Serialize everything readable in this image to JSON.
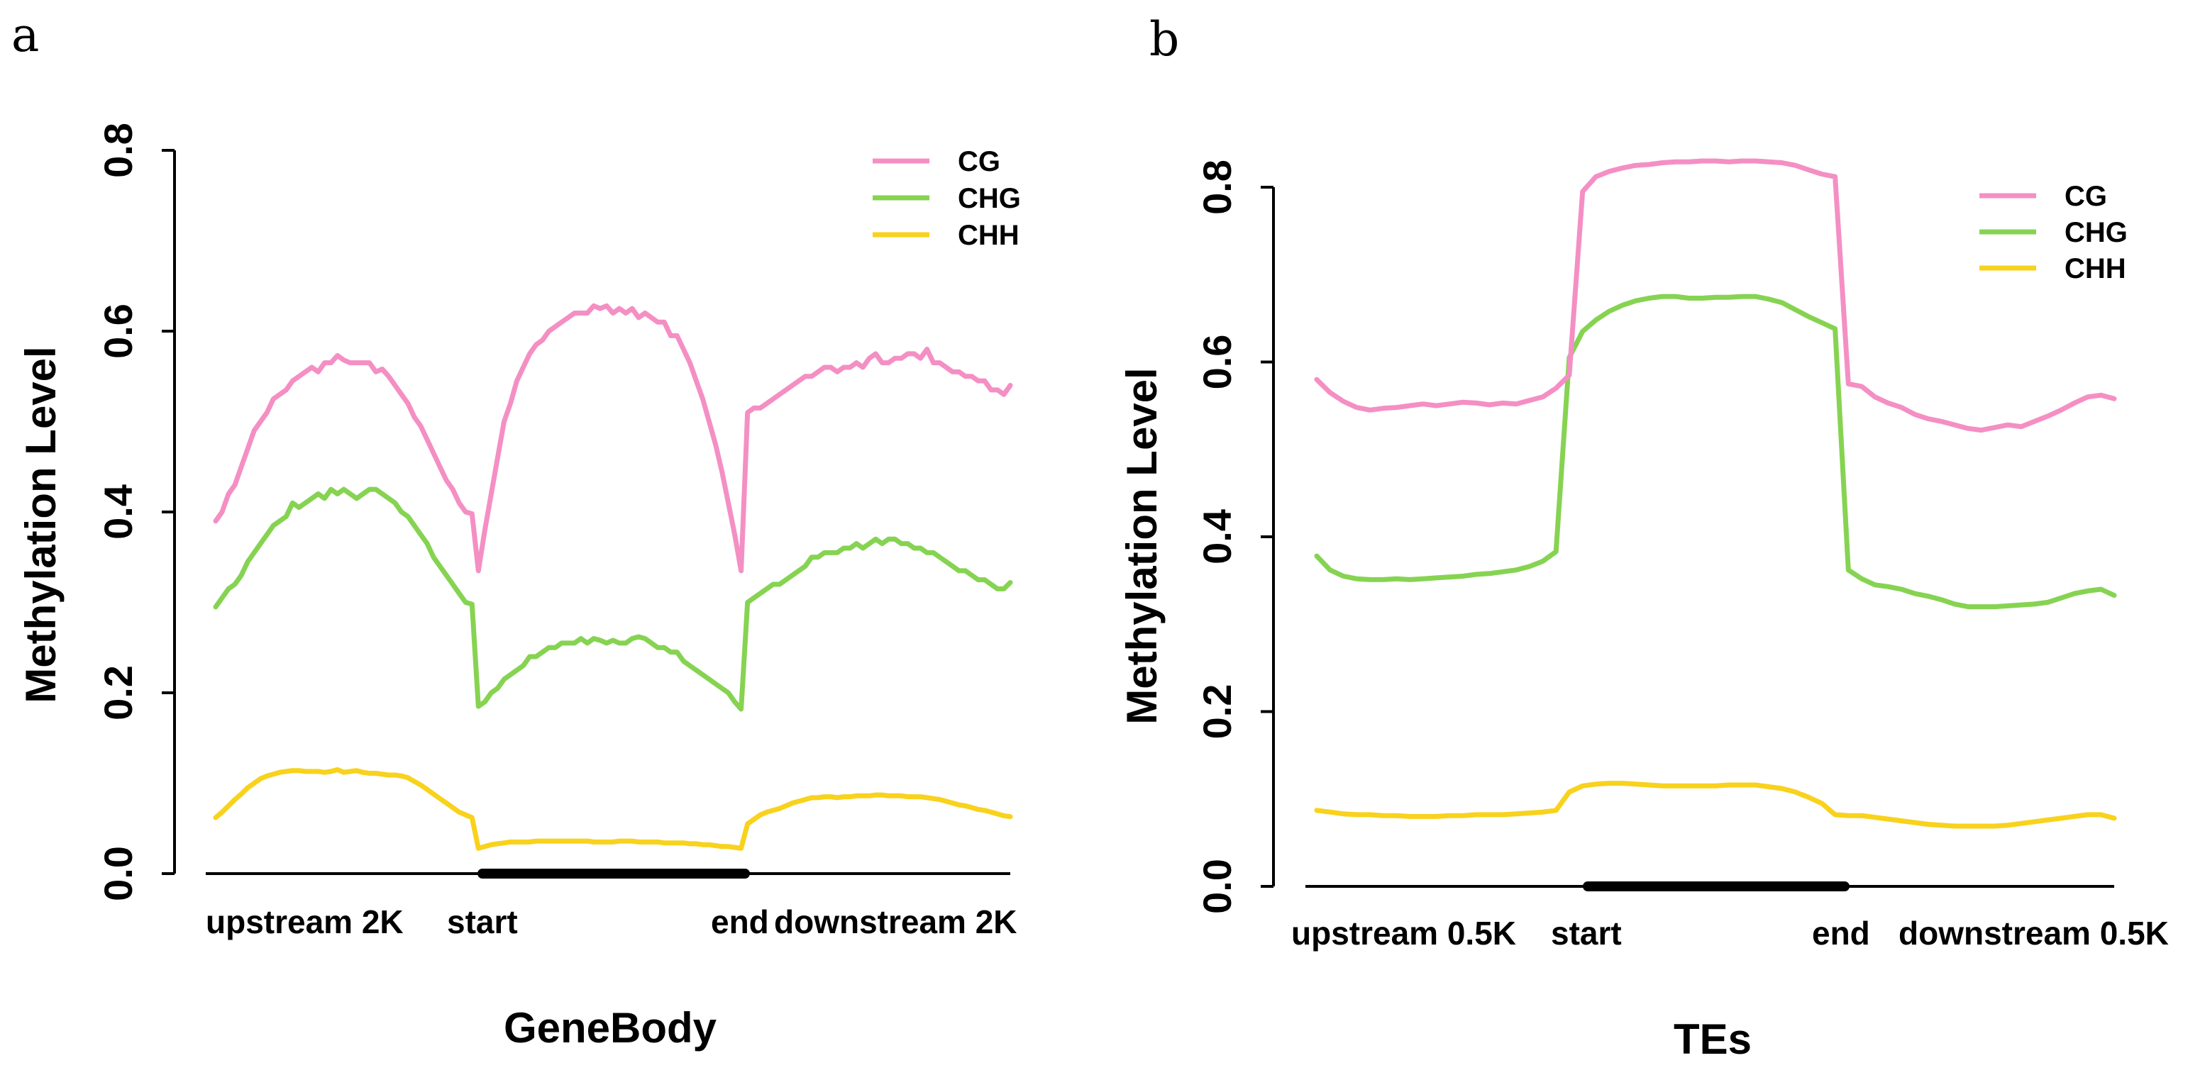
{
  "chart_data": [
    {
      "panel": "a",
      "type": "line",
      "title": "",
      "xlabel": "GeneBody",
      "ylabel": "Methylation Level",
      "ylim": [
        0,
        0.8
      ],
      "yticks": [
        "0.0",
        "0.2",
        "0.4",
        "0.6",
        "0.8"
      ],
      "region_labels": [
        "upstream 2K",
        "start",
        "end",
        "downstream 2K"
      ],
      "legend": [
        "CG",
        "CHG",
        "CHH"
      ],
      "series": [
        {
          "name": "CG",
          "color": "#f48fc4",
          "values": [
            0.39,
            0.4,
            0.42,
            0.43,
            0.45,
            0.47,
            0.49,
            0.5,
            0.51,
            0.525,
            0.53,
            0.535,
            0.545,
            0.55,
            0.555,
            0.56,
            0.555,
            0.565,
            0.565,
            0.573,
            0.568,
            0.565,
            0.565,
            0.565,
            0.565,
            0.555,
            0.558,
            0.55,
            0.54,
            0.53,
            0.52,
            0.505,
            0.495,
            0.48,
            0.465,
            0.45,
            0.435,
            0.425,
            0.41,
            0.4,
            0.398,
            0.335,
            0.38,
            0.42,
            0.46,
            0.5,
            0.52,
            0.545,
            0.56,
            0.575,
            0.585,
            0.59,
            0.6,
            0.605,
            0.61,
            0.615,
            0.62,
            0.62,
            0.62,
            0.628,
            0.625,
            0.628,
            0.62,
            0.625,
            0.62,
            0.625,
            0.615,
            0.62,
            0.615,
            0.61,
            0.61,
            0.595,
            0.595,
            0.58,
            0.565,
            0.545,
            0.525,
            0.5,
            0.475,
            0.445,
            0.41,
            0.375,
            0.335,
            0.51,
            0.515,
            0.515,
            0.52,
            0.525,
            0.53,
            0.535,
            0.54,
            0.545,
            0.55,
            0.55,
            0.555,
            0.56,
            0.56,
            0.555,
            0.56,
            0.56,
            0.565,
            0.56,
            0.57,
            0.575,
            0.565,
            0.565,
            0.57,
            0.57,
            0.575,
            0.575,
            0.57,
            0.58,
            0.565,
            0.565,
            0.56,
            0.555,
            0.555,
            0.55,
            0.55,
            0.545,
            0.545,
            0.535,
            0.535,
            0.53,
            0.54
          ]
        },
        {
          "name": "CHG",
          "color": "#86d352",
          "values": [
            0.295,
            0.305,
            0.315,
            0.32,
            0.33,
            0.345,
            0.355,
            0.365,
            0.375,
            0.385,
            0.39,
            0.395,
            0.41,
            0.405,
            0.41,
            0.415,
            0.42,
            0.415,
            0.425,
            0.42,
            0.425,
            0.42,
            0.415,
            0.42,
            0.425,
            0.425,
            0.42,
            0.415,
            0.41,
            0.4,
            0.395,
            0.385,
            0.375,
            0.365,
            0.35,
            0.34,
            0.33,
            0.32,
            0.31,
            0.3,
            0.298,
            0.185,
            0.19,
            0.2,
            0.205,
            0.215,
            0.22,
            0.225,
            0.23,
            0.24,
            0.24,
            0.245,
            0.25,
            0.25,
            0.255,
            0.255,
            0.255,
            0.26,
            0.255,
            0.26,
            0.258,
            0.255,
            0.258,
            0.255,
            0.255,
            0.26,
            0.262,
            0.26,
            0.255,
            0.25,
            0.25,
            0.245,
            0.245,
            0.235,
            0.23,
            0.225,
            0.22,
            0.215,
            0.21,
            0.205,
            0.2,
            0.19,
            0.182,
            0.3,
            0.305,
            0.31,
            0.315,
            0.32,
            0.32,
            0.325,
            0.33,
            0.335,
            0.34,
            0.35,
            0.35,
            0.355,
            0.355,
            0.355,
            0.36,
            0.36,
            0.365,
            0.36,
            0.365,
            0.37,
            0.365,
            0.37,
            0.37,
            0.365,
            0.365,
            0.36,
            0.36,
            0.355,
            0.355,
            0.35,
            0.345,
            0.34,
            0.335,
            0.335,
            0.33,
            0.325,
            0.325,
            0.32,
            0.315,
            0.315,
            0.322
          ]
        },
        {
          "name": "CHH",
          "color": "#f8d21c",
          "values": [
            0.062,
            0.068,
            0.075,
            0.082,
            0.088,
            0.095,
            0.1,
            0.105,
            0.108,
            0.11,
            0.112,
            0.113,
            0.114,
            0.114,
            0.113,
            0.113,
            0.113,
            0.112,
            0.113,
            0.115,
            0.112,
            0.113,
            0.114,
            0.112,
            0.111,
            0.111,
            0.11,
            0.109,
            0.109,
            0.108,
            0.106,
            0.102,
            0.098,
            0.093,
            0.088,
            0.083,
            0.078,
            0.073,
            0.068,
            0.065,
            0.062,
            0.028,
            0.03,
            0.032,
            0.033,
            0.034,
            0.035,
            0.035,
            0.035,
            0.035,
            0.036,
            0.036,
            0.036,
            0.036,
            0.036,
            0.036,
            0.036,
            0.036,
            0.036,
            0.035,
            0.035,
            0.035,
            0.035,
            0.036,
            0.036,
            0.036,
            0.035,
            0.035,
            0.035,
            0.035,
            0.034,
            0.034,
            0.034,
            0.034,
            0.033,
            0.033,
            0.032,
            0.032,
            0.031,
            0.03,
            0.03,
            0.029,
            0.028,
            0.055,
            0.06,
            0.065,
            0.068,
            0.07,
            0.072,
            0.075,
            0.078,
            0.08,
            0.082,
            0.084,
            0.084,
            0.085,
            0.085,
            0.084,
            0.085,
            0.085,
            0.086,
            0.086,
            0.086,
            0.087,
            0.087,
            0.086,
            0.086,
            0.086,
            0.085,
            0.085,
            0.085,
            0.084,
            0.083,
            0.082,
            0.08,
            0.078,
            0.076,
            0.075,
            0.073,
            0.071,
            0.07,
            0.068,
            0.066,
            0.064,
            0.063
          ]
        }
      ]
    },
    {
      "panel": "b",
      "type": "line",
      "title": "",
      "xlabel": "TEs",
      "ylabel": "Methylation Level",
      "ylim": [
        0,
        0.8
      ],
      "yticks": [
        "0.0",
        "0.2",
        "0.4",
        "0.6",
        "0.8"
      ],
      "region_labels": [
        "upstream 0.5K",
        "start",
        "end",
        "downstream 0.5K"
      ],
      "legend": [
        "CG",
        "CHG",
        "CHH"
      ],
      "series": [
        {
          "name": "CG",
          "color": "#f48fc4",
          "values": [
            0.58,
            0.565,
            0.555,
            0.548,
            0.545,
            0.547,
            0.548,
            0.55,
            0.552,
            0.55,
            0.552,
            0.554,
            0.553,
            0.551,
            0.553,
            0.552,
            0.556,
            0.56,
            0.57,
            0.585,
            0.795,
            0.812,
            0.818,
            0.822,
            0.825,
            0.826,
            0.828,
            0.829,
            0.829,
            0.83,
            0.83,
            0.829,
            0.83,
            0.83,
            0.829,
            0.828,
            0.825,
            0.82,
            0.815,
            0.812,
            0.575,
            0.572,
            0.56,
            0.553,
            0.548,
            0.54,
            0.535,
            0.532,
            0.528,
            0.524,
            0.522,
            0.525,
            0.528,
            0.526,
            0.532,
            0.538,
            0.545,
            0.553,
            0.56,
            0.562,
            0.558
          ]
        },
        {
          "name": "CHG",
          "color": "#86d352",
          "values": [
            0.378,
            0.362,
            0.355,
            0.352,
            0.351,
            0.351,
            0.352,
            0.351,
            0.352,
            0.353,
            0.354,
            0.355,
            0.357,
            0.358,
            0.36,
            0.362,
            0.366,
            0.372,
            0.383,
            0.605,
            0.635,
            0.648,
            0.658,
            0.665,
            0.67,
            0.673,
            0.675,
            0.675,
            0.673,
            0.673,
            0.674,
            0.674,
            0.675,
            0.675,
            0.672,
            0.668,
            0.66,
            0.652,
            0.645,
            0.638,
            0.362,
            0.352,
            0.345,
            0.343,
            0.34,
            0.335,
            0.332,
            0.328,
            0.323,
            0.32,
            0.32,
            0.32,
            0.321,
            0.322,
            0.323,
            0.325,
            0.33,
            0.335,
            0.338,
            0.34,
            0.333
          ]
        },
        {
          "name": "CHH",
          "color": "#f8d21c",
          "values": [
            0.087,
            0.085,
            0.083,
            0.082,
            0.082,
            0.081,
            0.081,
            0.08,
            0.08,
            0.08,
            0.081,
            0.081,
            0.082,
            0.082,
            0.082,
            0.083,
            0.084,
            0.085,
            0.087,
            0.108,
            0.115,
            0.117,
            0.118,
            0.118,
            0.117,
            0.116,
            0.115,
            0.115,
            0.115,
            0.115,
            0.115,
            0.116,
            0.116,
            0.116,
            0.114,
            0.112,
            0.108,
            0.102,
            0.095,
            0.082,
            0.081,
            0.081,
            0.079,
            0.077,
            0.075,
            0.073,
            0.071,
            0.07,
            0.069,
            0.069,
            0.069,
            0.069,
            0.07,
            0.072,
            0.074,
            0.076,
            0.078,
            0.08,
            0.082,
            0.082,
            0.078
          ]
        }
      ]
    }
  ]
}
